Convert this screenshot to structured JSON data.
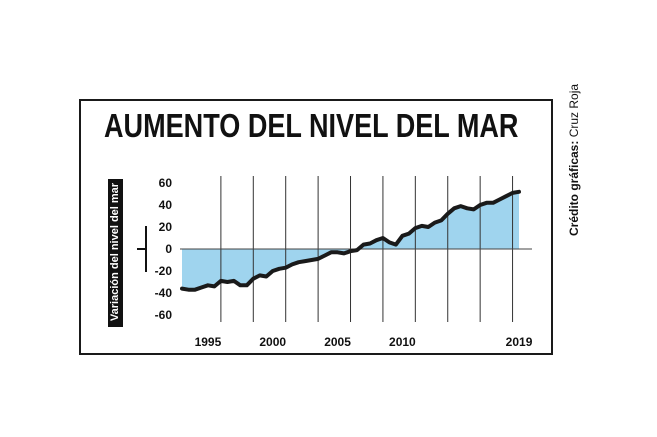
{
  "title": "AUMENTO DEL NIVEL DEL MAR",
  "credit": {
    "label": "Crédito gráficas:",
    "source": "Cruz Roja"
  },
  "colors": {
    "fill": "#9fd4ee",
    "line": "#1a1a1a",
    "grid": "#333333"
  },
  "chart_data": {
    "type": "area",
    "title": "AUMENTO DEL NIVEL DEL MAR",
    "xlabel": "",
    "ylabel": "Variación del nivel del mar",
    "ylim": [
      -65,
      62
    ],
    "xlim": [
      1993,
      2020
    ],
    "x_tick_labels": [
      "1995",
      "2000",
      "2005",
      "2010",
      "2019"
    ],
    "x_tick_values": [
      1995,
      2000,
      2005,
      2010,
      2019
    ],
    "y_ticks": [
      60,
      40,
      20,
      0,
      -20,
      -40,
      -60
    ],
    "grid": "vertical",
    "series": [
      {
        "x": [
          1993.0,
          1993.5,
          1994.0,
          1994.5,
          1995.0,
          1995.5,
          1996.0,
          1996.5,
          1997.0,
          1997.5,
          1998.0,
          1998.5,
          1999.0,
          1999.5,
          2000.0,
          2000.5,
          2001.0,
          2001.5,
          2002.0,
          2002.5,
          2003.0,
          2003.5,
          2004.0,
          2004.5,
          2005.0,
          2005.5,
          2006.0,
          2006.5,
          2007.0,
          2007.5,
          2008.0,
          2008.5,
          2009.0,
          2009.5,
          2010.0,
          2010.5,
          2011.0,
          2011.5,
          2012.0,
          2012.5,
          2013.0,
          2013.5,
          2014.0,
          2014.5,
          2015.0,
          2015.5,
          2016.0,
          2016.5,
          2017.0,
          2017.5,
          2018.0,
          2018.5,
          2019.0
        ],
        "y": [
          -36,
          -37,
          -37,
          -35,
          -33,
          -34,
          -29,
          -30,
          -29,
          -33,
          -33,
          -27,
          -24,
          -25,
          -20,
          -18,
          -17,
          -14,
          -12,
          -11,
          -10,
          -9,
          -6,
          -3,
          -3,
          -4,
          -2,
          -1,
          4,
          5,
          8,
          10,
          6,
          4,
          12,
          14,
          19,
          21,
          20,
          24,
          26,
          32,
          37,
          39,
          37,
          36,
          40,
          42,
          42,
          45,
          48,
          51,
          52
        ]
      }
    ]
  }
}
